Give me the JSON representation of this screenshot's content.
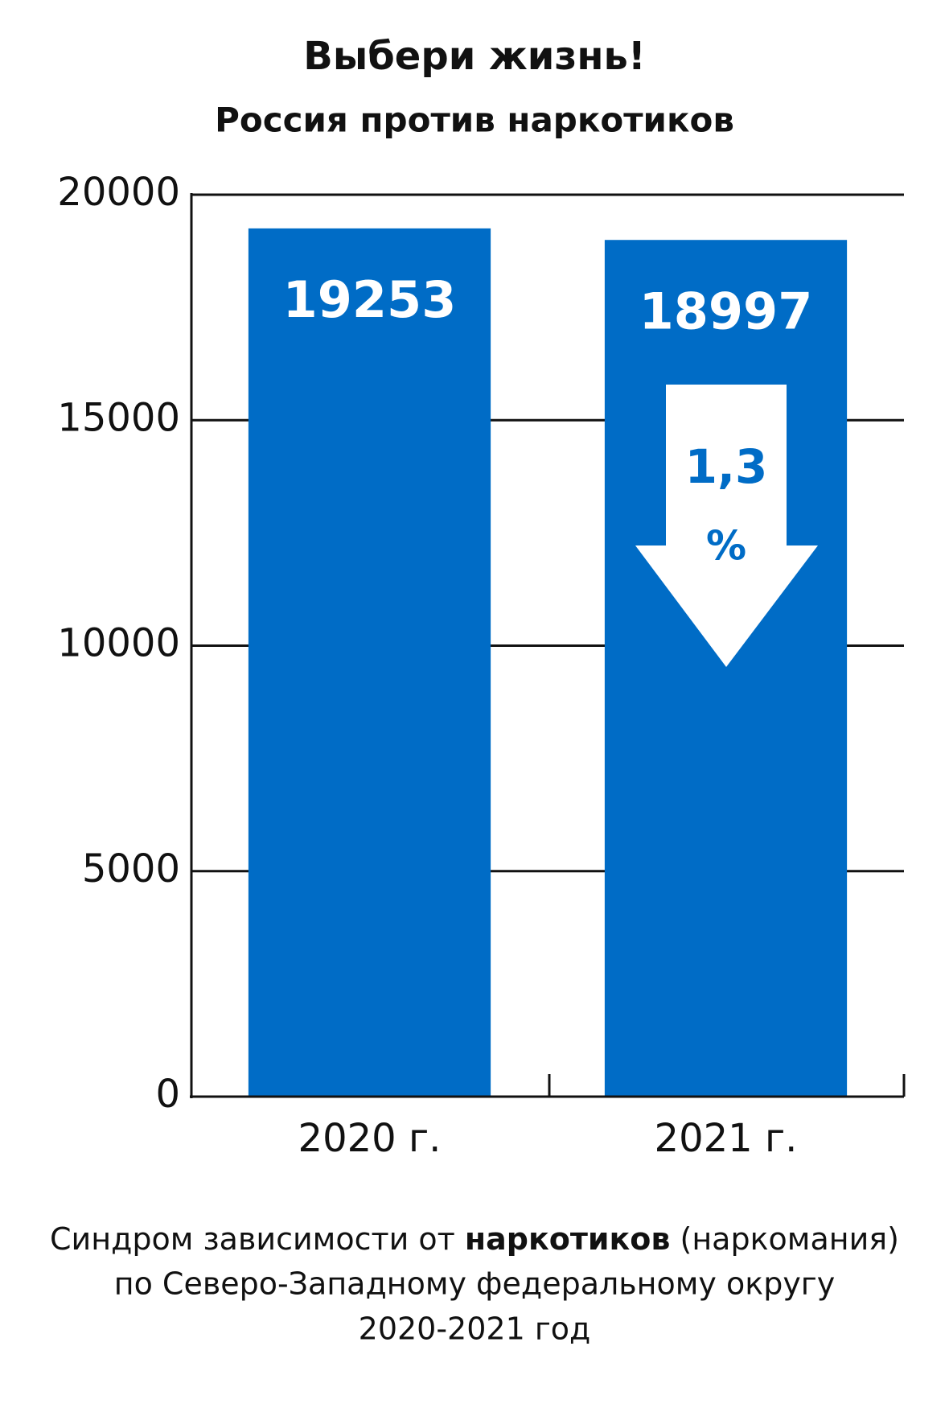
{
  "chart_data": {
    "type": "bar",
    "title": "Выбери жизнь!",
    "subtitle": "Россия против наркотиков",
    "categories": [
      "2020 г.",
      "2021 г."
    ],
    "values": [
      19253,
      18997
    ],
    "color": "#006cc6",
    "ylim": [
      0,
      20000
    ],
    "yticks": [
      0,
      5000,
      10000,
      15000,
      20000
    ],
    "grid": true,
    "annotation": [
      "1,3",
      "%"
    ],
    "footer": [
      [
        "Синдром зависимости  от ",
        "наркотиков",
        " (наркомания)"
      ],
      "по Северо-Западному федеральному округу",
      "2020-2021 год"
    ]
  }
}
